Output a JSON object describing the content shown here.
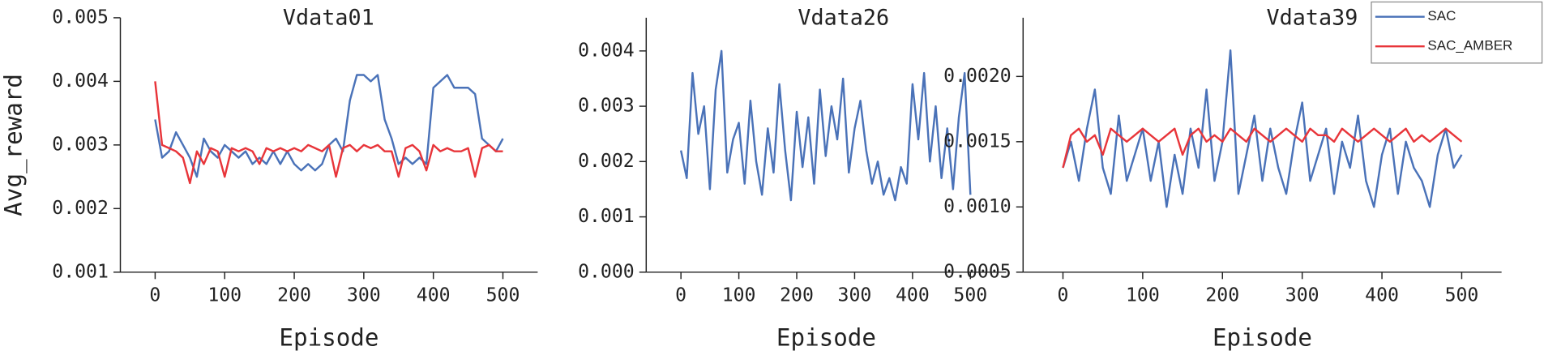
{
  "chart_data": [
    {
      "type": "line",
      "title": "Vdata01",
      "xlabel": "Episode",
      "ylabel": "Avg_reward",
      "x": [
        0,
        10,
        20,
        30,
        40,
        50,
        60,
        70,
        80,
        90,
        100,
        110,
        120,
        130,
        140,
        150,
        160,
        170,
        180,
        190,
        200,
        210,
        220,
        230,
        240,
        250,
        260,
        270,
        280,
        290,
        300,
        310,
        320,
        330,
        340,
        350,
        360,
        370,
        380,
        390,
        400,
        410,
        420,
        430,
        440,
        450,
        460,
        470,
        480,
        490,
        500
      ],
      "series": [
        {
          "name": "SAC",
          "color": "#4a72b8",
          "values": [
            0.0034,
            0.0028,
            0.0029,
            0.0032,
            0.003,
            0.0028,
            0.0025,
            0.0031,
            0.0029,
            0.0028,
            0.003,
            0.0029,
            0.0028,
            0.0029,
            0.0027,
            0.0028,
            0.0027,
            0.0029,
            0.0027,
            0.0029,
            0.0027,
            0.0026,
            0.0027,
            0.0026,
            0.0027,
            0.003,
            0.0031,
            0.0029,
            0.0037,
            0.0041,
            0.0041,
            0.004,
            0.0041,
            0.0034,
            0.0031,
            0.0027,
            0.0028,
            0.0027,
            0.0028,
            0.0027,
            0.0039,
            0.004,
            0.0041,
            0.0039,
            0.0039,
            0.0039,
            0.0038,
            0.0031,
            0.003,
            0.0029,
            0.0031
          ]
        },
        {
          "name": "SAC_AMBER",
          "color": "#e8353a",
          "values": [
            0.004,
            0.003,
            0.00295,
            0.0029,
            0.0028,
            0.0024,
            0.0029,
            0.0027,
            0.00295,
            0.0029,
            0.0025,
            0.00295,
            0.0029,
            0.00295,
            0.0029,
            0.0027,
            0.00295,
            0.0029,
            0.00295,
            0.0029,
            0.00295,
            0.0029,
            0.003,
            0.00295,
            0.0029,
            0.003,
            0.0025,
            0.00295,
            0.003,
            0.0029,
            0.003,
            0.00295,
            0.003,
            0.0029,
            0.0029,
            0.0025,
            0.00295,
            0.003,
            0.0029,
            0.0026,
            0.003,
            0.0029,
            0.00295,
            0.0029,
            0.0029,
            0.00295,
            0.0025,
            0.00295,
            0.003,
            0.0029,
            0.0029
          ]
        }
      ],
      "xlim": [
        -50,
        550
      ],
      "xticks": [
        0,
        100,
        200,
        300,
        400,
        500
      ],
      "ylim": [
        0.001,
        0.005
      ],
      "yticks": [
        0.001,
        0.002,
        0.003,
        0.004,
        0.005
      ]
    },
    {
      "type": "line",
      "title": "Vdata26",
      "xlabel": "Episode",
      "x": [
        0,
        10,
        20,
        30,
        40,
        50,
        60,
        70,
        80,
        90,
        100,
        110,
        120,
        130,
        140,
        150,
        160,
        170,
        180,
        190,
        200,
        210,
        220,
        230,
        240,
        250,
        260,
        270,
        280,
        290,
        300,
        310,
        320,
        330,
        340,
        350,
        360,
        370,
        380,
        390,
        400,
        410,
        420,
        430,
        440,
        450,
        460,
        470,
        480,
        490,
        500
      ],
      "series": [
        {
          "name": "SAC",
          "color": "#4a72b8",
          "values": [
            0.0022,
            0.0017,
            0.0036,
            0.0025,
            0.003,
            0.0015,
            0.0033,
            0.004,
            0.0018,
            0.0024,
            0.0027,
            0.0016,
            0.0031,
            0.002,
            0.0014,
            0.0026,
            0.0018,
            0.0034,
            0.0022,
            0.0013,
            0.0029,
            0.0019,
            0.0028,
            0.0016,
            0.0033,
            0.0021,
            0.003,
            0.0024,
            0.0035,
            0.0018,
            0.0026,
            0.0031,
            0.0022,
            0.0016,
            0.002,
            0.0014,
            0.0017,
            0.0013,
            0.0019,
            0.0016,
            0.0034,
            0.0024,
            0.0036,
            0.002,
            0.003,
            0.0017,
            0.0026,
            0.0015,
            0.0028,
            0.0036,
            0.0014
          ]
        }
      ],
      "xlim": [
        -60,
        562
      ],
      "xticks": [
        0,
        100,
        200,
        300,
        400,
        500
      ],
      "ylim": [
        0,
        0.0046
      ],
      "yticks": [
        {
          "value": 0,
          "label": "0.000"
        },
        0.001,
        0.002,
        0.003,
        0.004
      ]
    },
    {
      "type": "line",
      "title": "Vdata39",
      "xlabel": "Episode",
      "legend": "upper right",
      "x": [
        0,
        10,
        20,
        30,
        40,
        50,
        60,
        70,
        80,
        90,
        100,
        110,
        120,
        130,
        140,
        150,
        160,
        170,
        180,
        190,
        200,
        210,
        220,
        230,
        240,
        250,
        260,
        270,
        280,
        290,
        300,
        310,
        320,
        330,
        340,
        350,
        360,
        370,
        380,
        390,
        400,
        410,
        420,
        430,
        440,
        450,
        460,
        470,
        480,
        490,
        500
      ],
      "series": [
        {
          "name": "SAC",
          "color": "#4a72b8",
          "values": [
            0.0013,
            0.0015,
            0.0012,
            0.0016,
            0.0019,
            0.0013,
            0.0011,
            0.0017,
            0.0012,
            0.0014,
            0.0016,
            0.0012,
            0.0015,
            0.001,
            0.0014,
            0.0011,
            0.0016,
            0.0013,
            0.0019,
            0.0012,
            0.0015,
            0.0022,
            0.0011,
            0.0014,
            0.0017,
            0.0012,
            0.0016,
            0.0013,
            0.0011,
            0.0015,
            0.0018,
            0.0012,
            0.0014,
            0.0016,
            0.0011,
            0.0015,
            0.0013,
            0.0017,
            0.0012,
            0.001,
            0.0014,
            0.0016,
            0.0011,
            0.0015,
            0.0013,
            0.0012,
            0.001,
            0.0014,
            0.0016,
            0.0013,
            0.0014
          ]
        },
        {
          "name": "SAC_AMBER",
          "color": "#e8353a",
          "values": [
            0.0013,
            0.00155,
            0.0016,
            0.0015,
            0.00155,
            0.0014,
            0.0016,
            0.00155,
            0.0015,
            0.00155,
            0.0016,
            0.00155,
            0.0015,
            0.00155,
            0.0016,
            0.0014,
            0.00155,
            0.0016,
            0.0015,
            0.00155,
            0.0015,
            0.0016,
            0.00155,
            0.0015,
            0.0016,
            0.00155,
            0.0015,
            0.00155,
            0.0016,
            0.00155,
            0.0015,
            0.0016,
            0.00155,
            0.00155,
            0.0015,
            0.0016,
            0.00155,
            0.0015,
            0.00155,
            0.0016,
            0.00155,
            0.0015,
            0.00155,
            0.0016,
            0.0015,
            0.00155,
            0.0015,
            0.00155,
            0.0016,
            0.00155,
            0.0015
          ]
        }
      ],
      "xlim": [
        -50,
        550
      ],
      "xticks": [
        0,
        100,
        200,
        300,
        400,
        500
      ],
      "ylim": [
        0.0005,
        0.00245
      ],
      "yticks": [
        0.0005,
        {
          "value": 0.001,
          "label": "0.0010"
        },
        0.0015,
        {
          "value": 0.002,
          "label": "0.0020"
        }
      ]
    }
  ]
}
